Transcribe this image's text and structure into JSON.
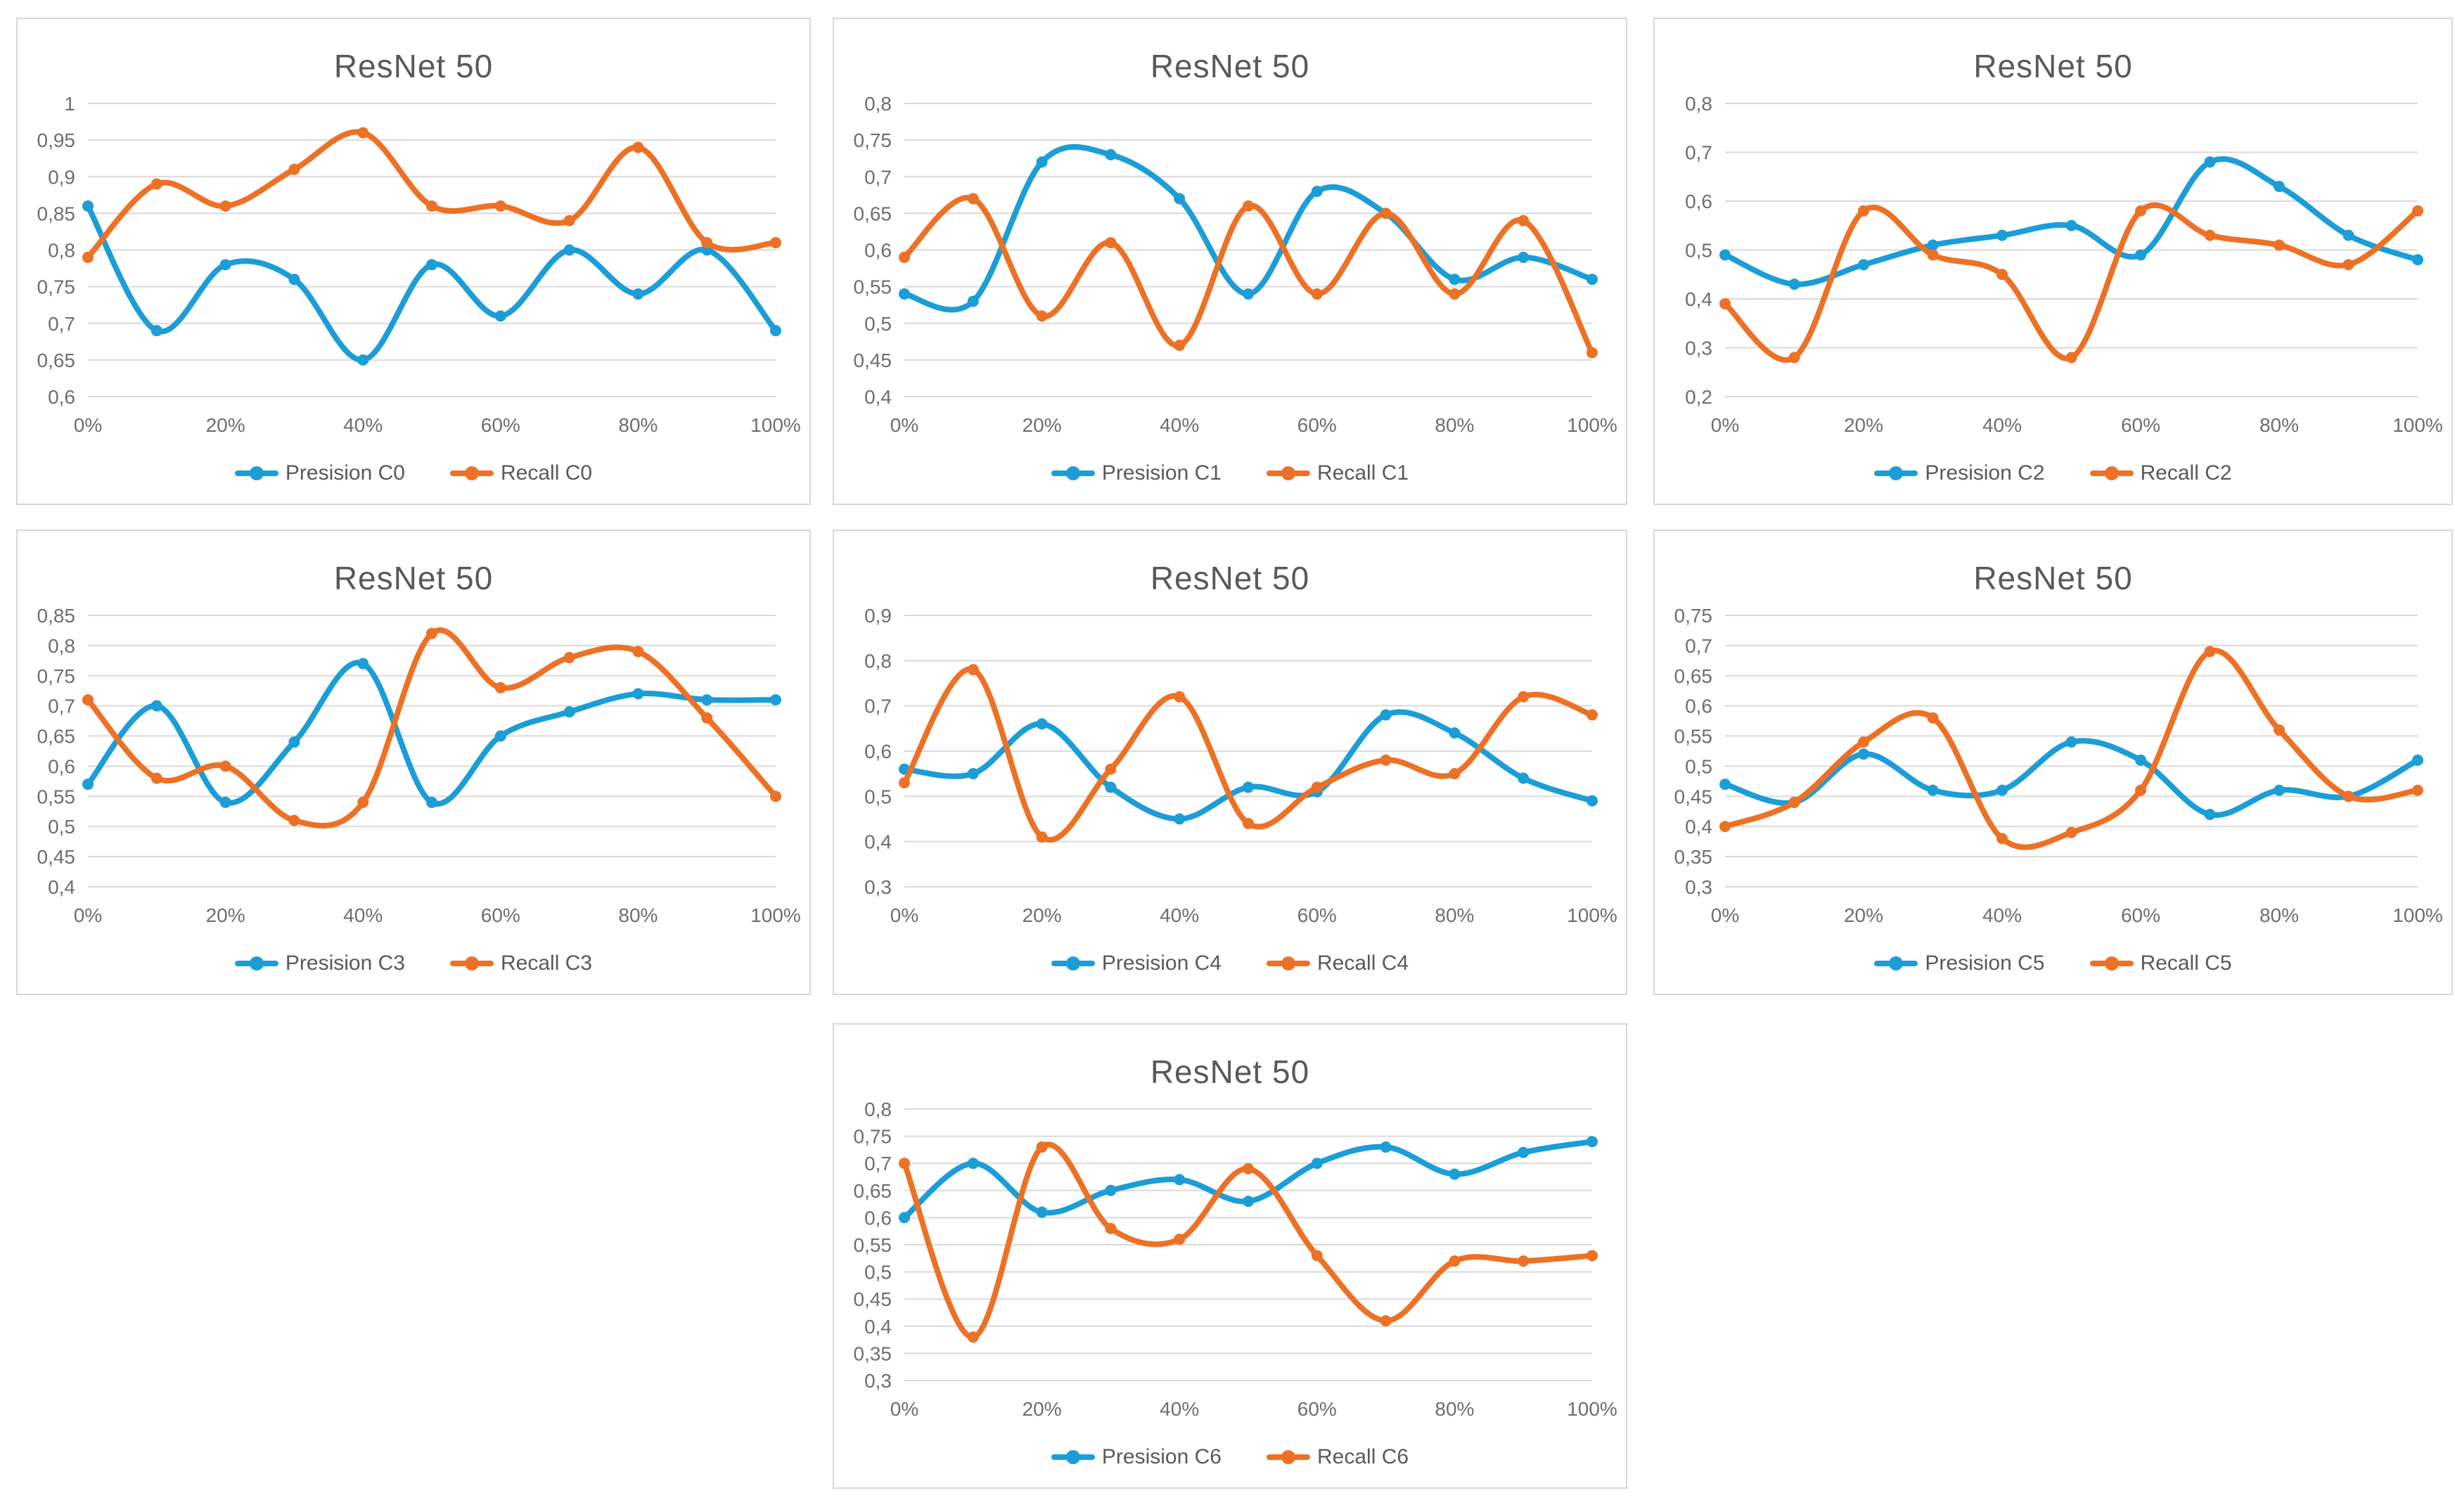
{
  "palette": {
    "precision_blue": "#1B9DD7",
    "recall_orange": "#ED7125",
    "grid": "#D9D9D9",
    "tick_text": "#6E6E6E",
    "title_text": "#595959",
    "legend_text": "#595959",
    "panel_border": "#D7D7D7",
    "background": "#FFFFFF"
  },
  "chart_data": [
    {
      "id": "C0",
      "type": "line",
      "title": "ResNet 50",
      "smooth": true,
      "grid": true,
      "legend_position": "bottom",
      "categories": [
        "0%",
        "10%",
        "20%",
        "30%",
        "40%",
        "50%",
        "60%",
        "70%",
        "80%",
        "90%",
        "100%"
      ],
      "xtick_labels": [
        "0%",
        "20%",
        "40%",
        "60%",
        "80%",
        "100%"
      ],
      "ylim": [
        0.6,
        1.0
      ],
      "ytick_step": 0.05,
      "ytick_values": [
        1,
        0.95,
        0.9,
        0.85,
        0.8,
        0.75,
        0.7,
        0.65,
        0.6
      ],
      "ytick_labels": [
        "1",
        "0,95",
        "0,9",
        "0,85",
        "0,8",
        "0,75",
        "0,7",
        "0,65",
        "0,6"
      ],
      "series": [
        {
          "name": "Presision C0",
          "color": "#1B9DD7",
          "marker": "circle",
          "values": [
            0.86,
            0.69,
            0.78,
            0.76,
            0.65,
            0.78,
            0.71,
            0.8,
            0.74,
            0.8,
            0.69
          ]
        },
        {
          "name": "Recall C0",
          "color": "#ED7125",
          "marker": "circle",
          "values": [
            0.79,
            0.89,
            0.86,
            0.91,
            0.96,
            0.86,
            0.86,
            0.84,
            0.94,
            0.81,
            0.81
          ]
        }
      ]
    },
    {
      "id": "C1",
      "type": "line",
      "title": "ResNet 50",
      "smooth": true,
      "grid": true,
      "legend_position": "bottom",
      "categories": [
        "0%",
        "10%",
        "20%",
        "30%",
        "40%",
        "50%",
        "60%",
        "70%",
        "80%",
        "90%",
        "100%"
      ],
      "xtick_labels": [
        "0%",
        "20%",
        "40%",
        "60%",
        "80%",
        "100%"
      ],
      "ylim": [
        0.4,
        0.8
      ],
      "ytick_step": 0.05,
      "ytick_values": [
        0.8,
        0.75,
        0.7,
        0.65,
        0.6,
        0.55,
        0.5,
        0.45,
        0.4
      ],
      "ytick_labels": [
        "0,8",
        "0,75",
        "0,7",
        "0,65",
        "0,6",
        "0,55",
        "0,5",
        "0,45",
        "0,4"
      ],
      "series": [
        {
          "name": "Presision C1",
          "color": "#1B9DD7",
          "marker": "circle",
          "values": [
            0.54,
            0.53,
            0.72,
            0.73,
            0.67,
            0.54,
            0.68,
            0.65,
            0.56,
            0.59,
            0.56
          ]
        },
        {
          "name": "Recall C1",
          "color": "#ED7125",
          "marker": "circle",
          "values": [
            0.59,
            0.67,
            0.51,
            0.61,
            0.47,
            0.66,
            0.54,
            0.65,
            0.54,
            0.64,
            0.46
          ]
        }
      ]
    },
    {
      "id": "C2",
      "type": "line",
      "title": "ResNet 50",
      "smooth": true,
      "grid": true,
      "legend_position": "bottom",
      "categories": [
        "0%",
        "10%",
        "20%",
        "30%",
        "40%",
        "50%",
        "60%",
        "70%",
        "80%",
        "90%",
        "100%"
      ],
      "xtick_labels": [
        "0%",
        "20%",
        "40%",
        "60%",
        "80%",
        "100%"
      ],
      "ylim": [
        0.2,
        0.8
      ],
      "ytick_step": 0.1,
      "ytick_values": [
        0.8,
        0.7,
        0.6,
        0.5,
        0.4,
        0.3,
        0.2
      ],
      "ytick_labels": [
        "0,8",
        "0,7",
        "0,6",
        "0,5",
        "0,4",
        "0,3",
        "0,2"
      ],
      "series": [
        {
          "name": "Presision C2",
          "color": "#1B9DD7",
          "marker": "circle",
          "values": [
            0.49,
            0.43,
            0.47,
            0.51,
            0.53,
            0.55,
            0.49,
            0.68,
            0.63,
            0.53,
            0.48
          ]
        },
        {
          "name": "Recall C2",
          "color": "#ED7125",
          "marker": "circle",
          "values": [
            0.39,
            0.28,
            0.58,
            0.49,
            0.45,
            0.28,
            0.58,
            0.53,
            0.51,
            0.47,
            0.58
          ]
        }
      ]
    },
    {
      "id": "C3",
      "type": "line",
      "title": "ResNet 50",
      "smooth": true,
      "grid": true,
      "legend_position": "bottom",
      "categories": [
        "0%",
        "10%",
        "20%",
        "30%",
        "40%",
        "50%",
        "60%",
        "70%",
        "80%",
        "90%",
        "100%"
      ],
      "xtick_labels": [
        "0%",
        "20%",
        "40%",
        "60%",
        "80%",
        "100%"
      ],
      "ylim": [
        0.4,
        0.85
      ],
      "ytick_step": 0.05,
      "ytick_values": [
        0.85,
        0.8,
        0.75,
        0.7,
        0.65,
        0.6,
        0.55,
        0.5,
        0.45,
        0.4
      ],
      "ytick_labels": [
        "0,85",
        "0,8",
        "0,75",
        "0,7",
        "0,65",
        "0,6",
        "0,55",
        "0,5",
        "0,45",
        "0,4"
      ],
      "series": [
        {
          "name": "Presision C3",
          "color": "#1B9DD7",
          "marker": "circle",
          "values": [
            0.57,
            0.7,
            0.54,
            0.64,
            0.77,
            0.54,
            0.65,
            0.69,
            0.72,
            0.71,
            0.71
          ]
        },
        {
          "name": "Recall C3",
          "color": "#ED7125",
          "marker": "circle",
          "values": [
            0.71,
            0.58,
            0.6,
            0.51,
            0.54,
            0.82,
            0.73,
            0.78,
            0.79,
            0.68,
            0.55
          ]
        }
      ]
    },
    {
      "id": "C4",
      "type": "line",
      "title": "ResNet 50",
      "smooth": true,
      "grid": true,
      "legend_position": "bottom",
      "categories": [
        "0%",
        "10%",
        "20%",
        "30%",
        "40%",
        "50%",
        "60%",
        "70%",
        "80%",
        "90%",
        "100%"
      ],
      "xtick_labels": [
        "0%",
        "20%",
        "40%",
        "60%",
        "80%",
        "100%"
      ],
      "ylim": [
        0.3,
        0.9
      ],
      "ytick_step": 0.1,
      "ytick_values": [
        0.9,
        0.8,
        0.7,
        0.6,
        0.5,
        0.4,
        0.3
      ],
      "ytick_labels": [
        "0,9",
        "0,8",
        "0,7",
        "0,6",
        "0,5",
        "0,4",
        "0,3"
      ],
      "series": [
        {
          "name": "Presision C4",
          "color": "#1B9DD7",
          "marker": "circle",
          "values": [
            0.56,
            0.55,
            0.66,
            0.52,
            0.45,
            0.52,
            0.51,
            0.68,
            0.64,
            0.54,
            0.49
          ]
        },
        {
          "name": "Recall C4",
          "color": "#ED7125",
          "marker": "circle",
          "values": [
            0.53,
            0.78,
            0.41,
            0.56,
            0.72,
            0.44,
            0.52,
            0.58,
            0.55,
            0.72,
            0.68
          ]
        }
      ]
    },
    {
      "id": "C5",
      "type": "line",
      "title": "ResNet 50",
      "smooth": true,
      "grid": true,
      "legend_position": "bottom",
      "categories": [
        "0%",
        "10%",
        "20%",
        "30%",
        "40%",
        "50%",
        "60%",
        "70%",
        "80%",
        "90%",
        "100%"
      ],
      "xtick_labels": [
        "0%",
        "20%",
        "40%",
        "60%",
        "80%",
        "100%"
      ],
      "ylim": [
        0.3,
        0.75
      ],
      "ytick_step": 0.05,
      "ytick_values": [
        0.75,
        0.7,
        0.65,
        0.6,
        0.55,
        0.5,
        0.45,
        0.4,
        0.35,
        0.3
      ],
      "ytick_labels": [
        "0,75",
        "0,7",
        "0,65",
        "0,6",
        "0,55",
        "0,5",
        "0,45",
        "0,4",
        "0,35",
        "0,3"
      ],
      "series": [
        {
          "name": "Presision C5",
          "color": "#1B9DD7",
          "marker": "circle",
          "values": [
            0.47,
            0.44,
            0.52,
            0.46,
            0.46,
            0.54,
            0.51,
            0.42,
            0.46,
            0.45,
            0.51
          ]
        },
        {
          "name": "Recall C5",
          "color": "#ED7125",
          "marker": "circle",
          "values": [
            0.4,
            0.44,
            0.54,
            0.58,
            0.38,
            0.39,
            0.46,
            0.69,
            0.56,
            0.45,
            0.46
          ]
        }
      ]
    },
    {
      "id": "C6",
      "type": "line",
      "title": "ResNet 50",
      "smooth": true,
      "grid": true,
      "legend_position": "bottom",
      "categories": [
        "0%",
        "10%",
        "20%",
        "30%",
        "40%",
        "50%",
        "60%",
        "70%",
        "80%",
        "90%",
        "100%"
      ],
      "xtick_labels": [
        "0%",
        "20%",
        "40%",
        "60%",
        "80%",
        "100%"
      ],
      "ylim": [
        0.3,
        0.8
      ],
      "ytick_step": 0.05,
      "ytick_values": [
        0.8,
        0.75,
        0.7,
        0.65,
        0.6,
        0.55,
        0.5,
        0.45,
        0.4,
        0.35,
        0.3
      ],
      "ytick_labels": [
        "0,8",
        "0,75",
        "0,7",
        "0,65",
        "0,6",
        "0,55",
        "0,5",
        "0,45",
        "0,4",
        "0,35",
        "0,3"
      ],
      "series": [
        {
          "name": "Presision C6",
          "color": "#1B9DD7",
          "marker": "circle",
          "values": [
            0.6,
            0.7,
            0.61,
            0.65,
            0.67,
            0.63,
            0.7,
            0.73,
            0.68,
            0.72,
            0.74
          ]
        },
        {
          "name": "Recall C6",
          "color": "#ED7125",
          "marker": "circle",
          "values": [
            0.7,
            0.38,
            0.73,
            0.58,
            0.56,
            0.69,
            0.53,
            0.41,
            0.52,
            0.52,
            0.53
          ]
        }
      ]
    }
  ]
}
